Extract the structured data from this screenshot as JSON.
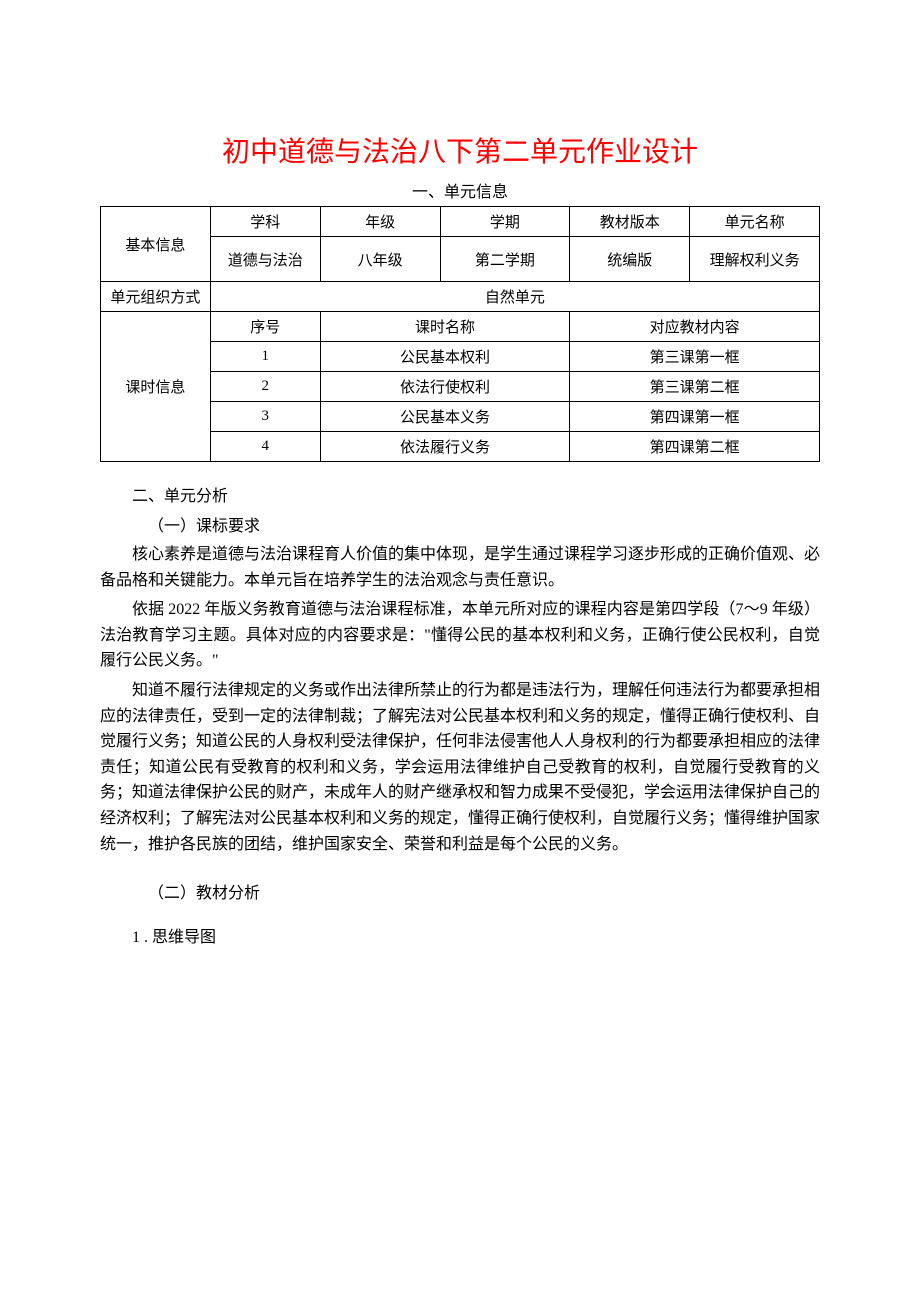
{
  "title": "初中道德与法治八下第二单元作业设计",
  "section1_header": "一、单元信息",
  "table": {
    "basic_info_label": "基本信息",
    "headers": {
      "subject": "学科",
      "grade": "年级",
      "semester": "学期",
      "edition": "教材版本",
      "unit_name": "单元名称"
    },
    "values": {
      "subject": "道德与法治",
      "grade": "八年级",
      "semester": "第二学期",
      "edition": "统编版",
      "unit_name": "理解权利义务"
    },
    "org_label": "单元组织方式",
    "org_value": "自然单元",
    "lesson_info_label": "课时信息",
    "lesson_headers": {
      "seq": "序号",
      "lesson_name": "课时名称",
      "textbook_ref": "对应教材内容"
    },
    "lessons": [
      {
        "seq": "1",
        "name": "公民基本权利",
        "ref": "第三课第一框"
      },
      {
        "seq": "2",
        "name": "依法行使权利",
        "ref": "第三课第二框"
      },
      {
        "seq": "3",
        "name": "公民基本义务",
        "ref": "第四课第一框"
      },
      {
        "seq": "4",
        "name": "依法履行义务",
        "ref": "第四课第二框"
      }
    ]
  },
  "section2_title": "二、单元分析",
  "subsection_2_1": "（一）课标要求",
  "para1": "核心素养是道德与法治课程育人价值的集中体现，是学生通过课程学习逐步形成的正确价值观、必备品格和关键能力。本单元旨在培养学生的法治观念与责任意识。",
  "para2": "依据 2022 年版义务教育道德与法治课程标准，本单元所对应的课程内容是第四学段（7～9 年级）法治教育学习主题。具体对应的内容要求是：\"懂得公民的基本权利和义务，正确行使公民权利，自觉履行公民义务。\"",
  "para3": "知道不履行法律规定的义务或作出法律所禁止的行为都是违法行为，理解任何违法行为都要承担相应的法律责任，受到一定的法律制裁；了解宪法对公民基本权利和义务的规定，懂得正确行使权利、自觉履行义务；知道公民的人身权利受法律保护，任何非法侵害他人人身权利的行为都要承担相应的法律责任；知道公民有受教育的权利和义务，学会运用法律维护自己受教育的权利，自觉履行受教育的义务；知道法律保护公民的财产，未成年人的财产继承权和智力成果不受侵犯，学会运用法律保护自己的经济权利；了解宪法对公民基本权利和义务的规定，懂得正确行使权利，自觉履行义务；懂得维护国家统一，推护各民族的团结，维护国家安全、荣誉和利益是每个公民的义务。",
  "subsection_2_2": "（二）教材分析",
  "item_1": "1 . 思维导图",
  "colors": {
    "title": "#ff0000",
    "text": "#000000",
    "border": "#000000",
    "background": "#ffffff"
  }
}
